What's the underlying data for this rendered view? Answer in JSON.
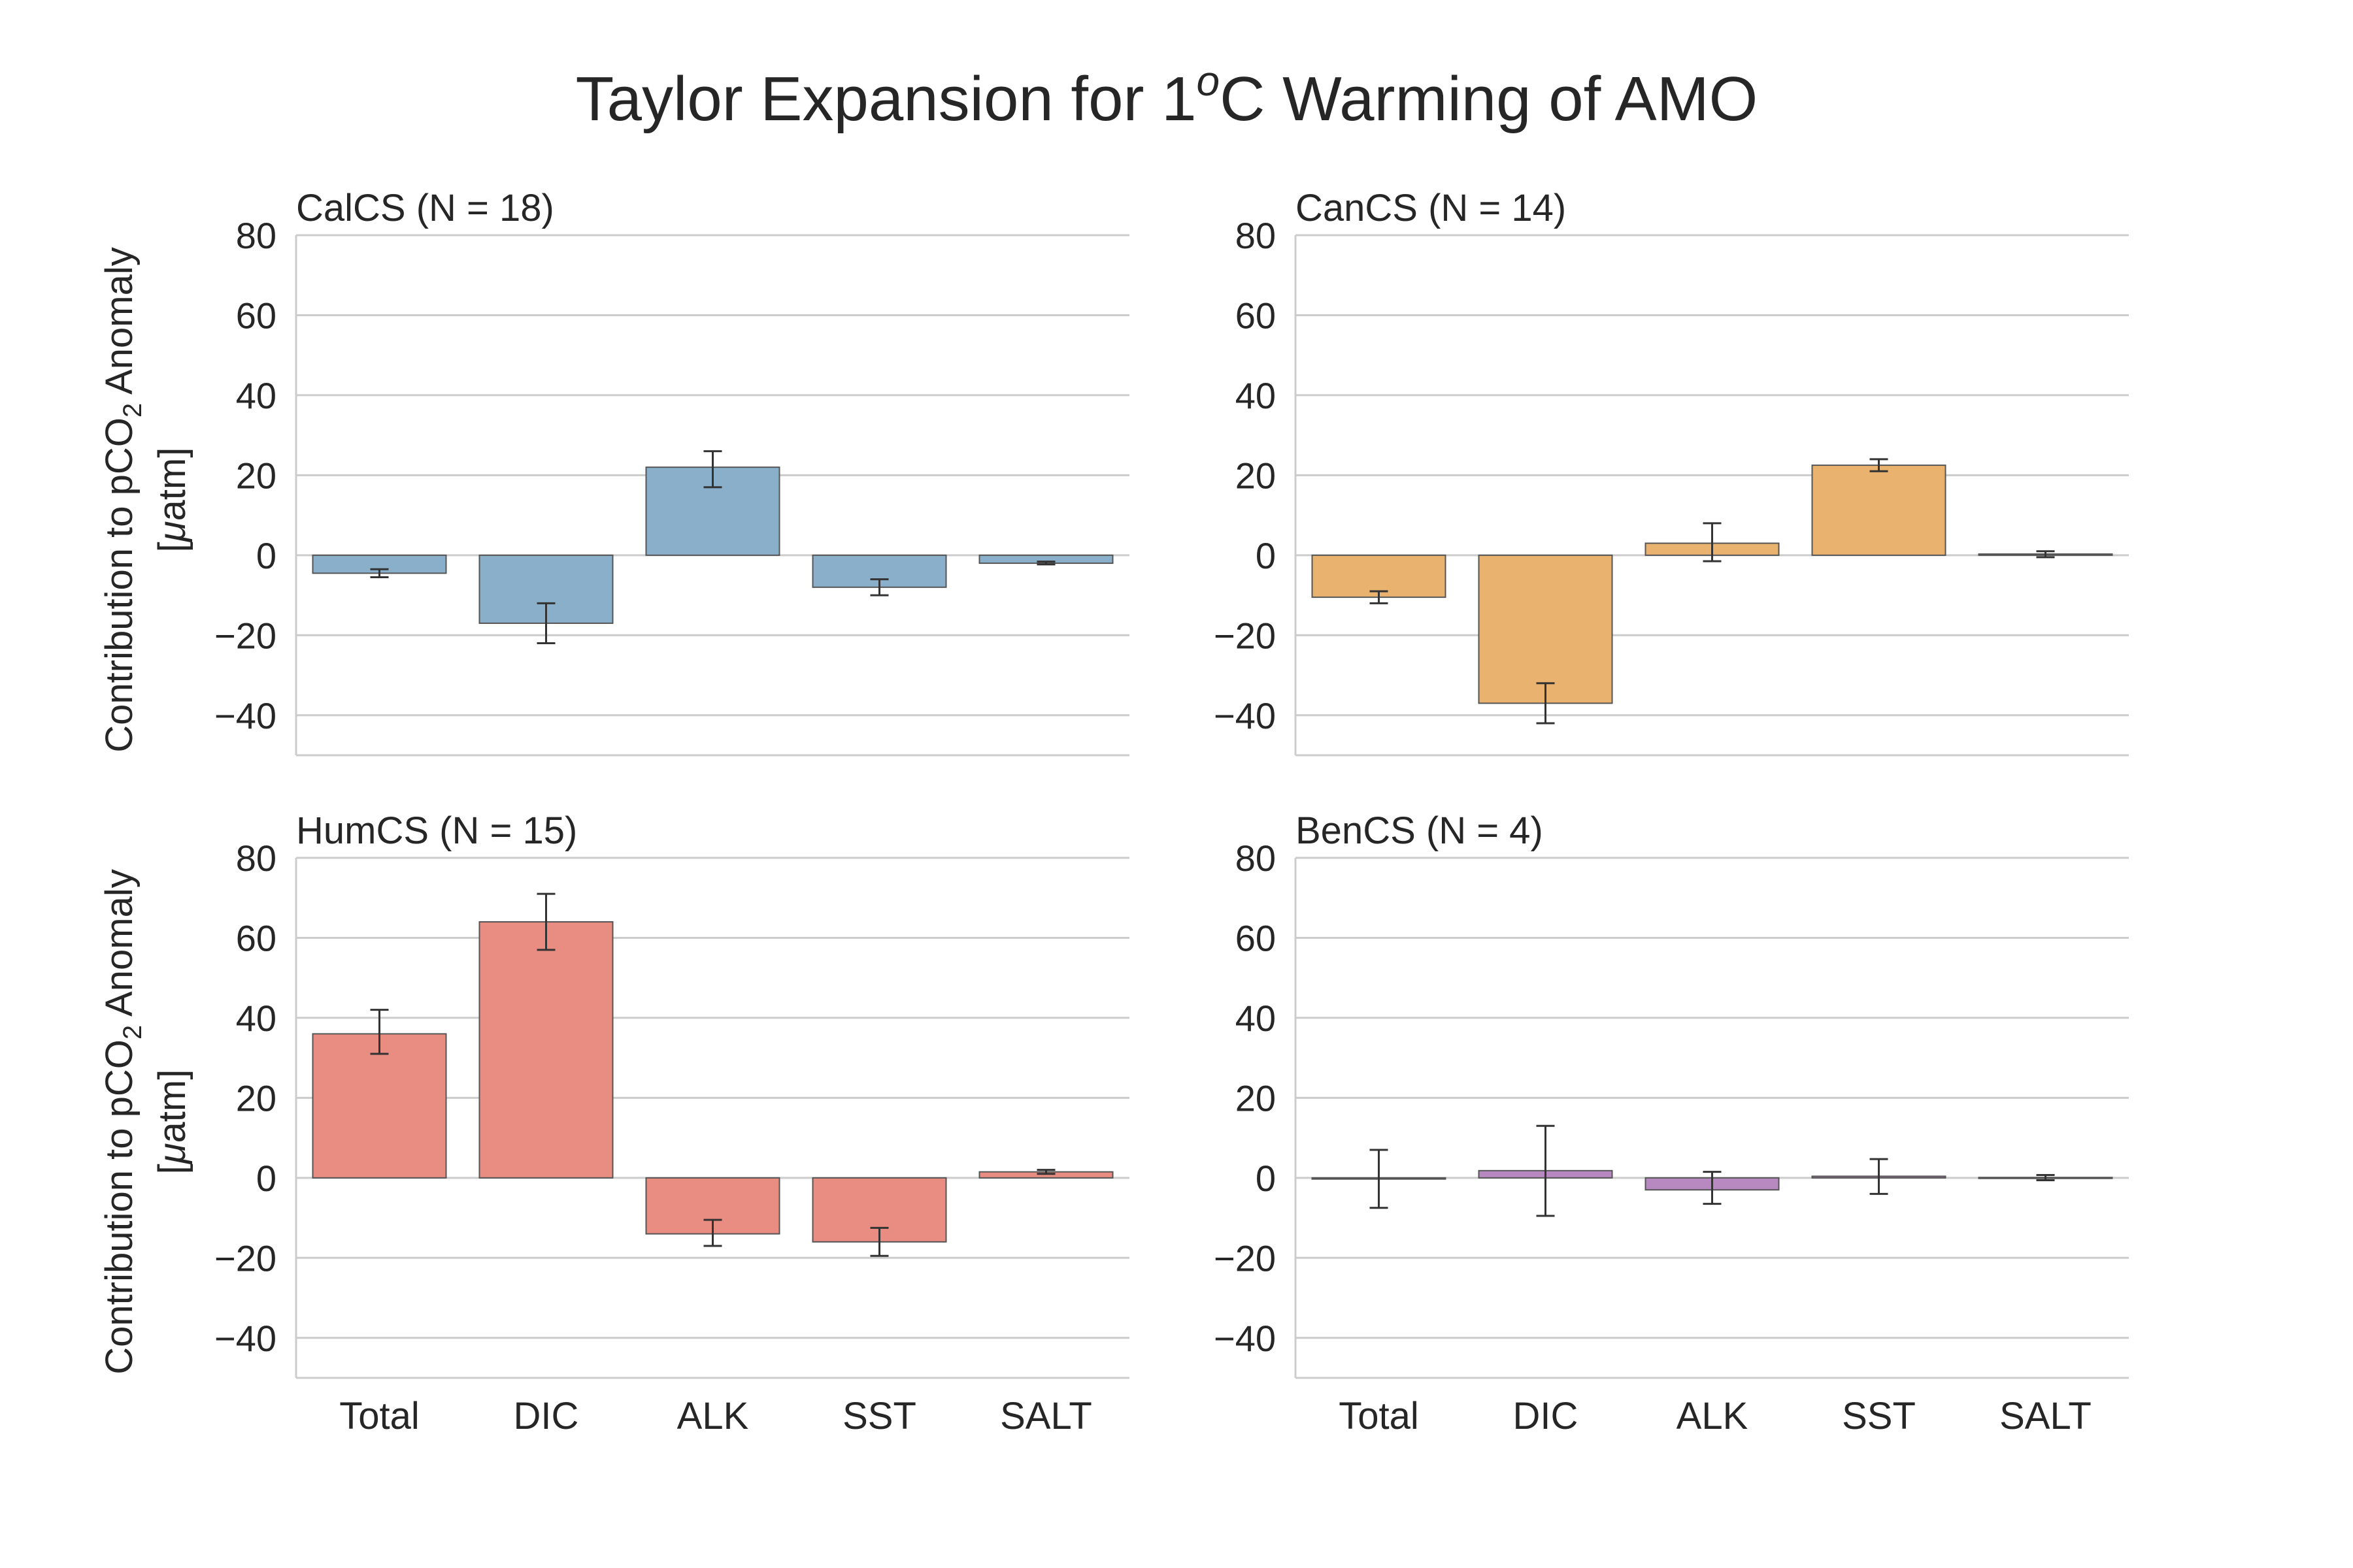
{
  "title_prefix": "Taylor Expansion for 1",
  "title_superscript": "o",
  "title_suffix": "C Warming of AMO",
  "ylabel_prefix": "Contribution to pCO",
  "ylabel_subscript": "2",
  "ylabel_suffix": " Anomaly",
  "ylabel_line2_prefix": "[",
  "ylabel_line2_mu": "μ",
  "ylabel_line2_suffix": "atm]",
  "colors": {
    "CalCS": "#8aafca",
    "CanCS": "#eab26f",
    "HumCS": "#e98c82",
    "BenCS": "#b889c0",
    "grid": "#cccccc",
    "errorbar": "#333333"
  },
  "chart_data": [
    {
      "type": "bar",
      "title": "CalCS (N = 18)",
      "categories": [
        "Total",
        "DIC",
        "ALK",
        "SST",
        "SALT"
      ],
      "values": [
        -4.5,
        -17,
        22,
        -8,
        -2
      ],
      "error_low": [
        -5.5,
        -22,
        17,
        -10,
        -2.3
      ],
      "error_high": [
        -3.5,
        -12,
        26,
        -6,
        -1.6
      ],
      "ylim": [
        -50,
        80
      ],
      "yticks": [
        80,
        60,
        40,
        20,
        0,
        -20,
        -40
      ],
      "grid": true
    },
    {
      "type": "bar",
      "title": "CanCS (N = 14)",
      "categories": [
        "Total",
        "DIC",
        "ALK",
        "SST",
        "SALT"
      ],
      "values": [
        -10.5,
        -37,
        3,
        22.5,
        0.3
      ],
      "error_low": [
        -12,
        -42,
        -1.5,
        21,
        -0.5
      ],
      "error_high": [
        -9,
        -32,
        8,
        24,
        1
      ],
      "ylim": [
        -50,
        80
      ],
      "yticks": [
        80,
        60,
        40,
        20,
        0,
        -20,
        -40
      ],
      "grid": true
    },
    {
      "type": "bar",
      "title": "HumCS (N = 15)",
      "categories": [
        "Total",
        "DIC",
        "ALK",
        "SST",
        "SALT"
      ],
      "values": [
        36,
        64,
        -14,
        -16,
        1.5
      ],
      "error_low": [
        31,
        57,
        -17,
        -19.5,
        1
      ],
      "error_high": [
        42,
        71,
        -10.5,
        -12.5,
        2
      ],
      "ylim": [
        -50,
        80
      ],
      "yticks": [
        80,
        60,
        40,
        20,
        0,
        -20,
        -40
      ],
      "grid": true
    },
    {
      "type": "bar",
      "title": "BenCS (N = 4)",
      "categories": [
        "Total",
        "DIC",
        "ALK",
        "SST",
        "SALT"
      ],
      "values": [
        -0.3,
        1.8,
        -3,
        0.4,
        0.1
      ],
      "error_low": [
        -7.5,
        -9.5,
        -6.5,
        -4,
        -0.6
      ],
      "error_high": [
        7,
        13,
        1.5,
        4.7,
        0.7
      ],
      "ylim": [
        -50,
        80
      ],
      "yticks": [
        80,
        60,
        40,
        20,
        0,
        -20,
        -40
      ],
      "grid": true
    }
  ]
}
